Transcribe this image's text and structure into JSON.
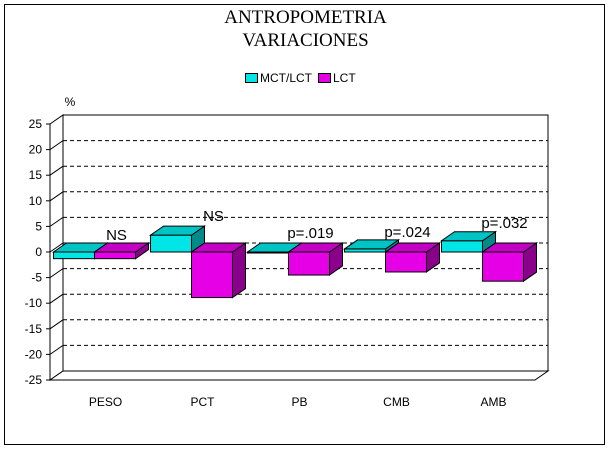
{
  "chart_data": {
    "type": "bar",
    "title": "ANTROPOMETRIA",
    "subtitle": "VARIACIONES",
    "ylabel": "%",
    "xlabel": "",
    "ylim": [
      -25,
      25
    ],
    "yticks": [
      25,
      20,
      15,
      10,
      5,
      0,
      -5,
      -10,
      -15,
      -20,
      -25
    ],
    "grid": true,
    "legend_position": "top-center",
    "categories": [
      "PESO",
      "PCT",
      "PB",
      "CMB",
      "AMB"
    ],
    "series": [
      {
        "name": "MCT/LCT",
        "color": "#00e6e6",
        "values": [
          -1.3,
          3.3,
          -0.2,
          0.6,
          2.2
        ]
      },
      {
        "name": "LCT",
        "color": "#e600e6",
        "values": [
          -1.3,
          -8.9,
          -4.5,
          -3.9,
          -5.7
        ]
      }
    ],
    "annotations": [
      "NS",
      "NS",
      "p=.019",
      "p=.024",
      "p=.032"
    ]
  }
}
